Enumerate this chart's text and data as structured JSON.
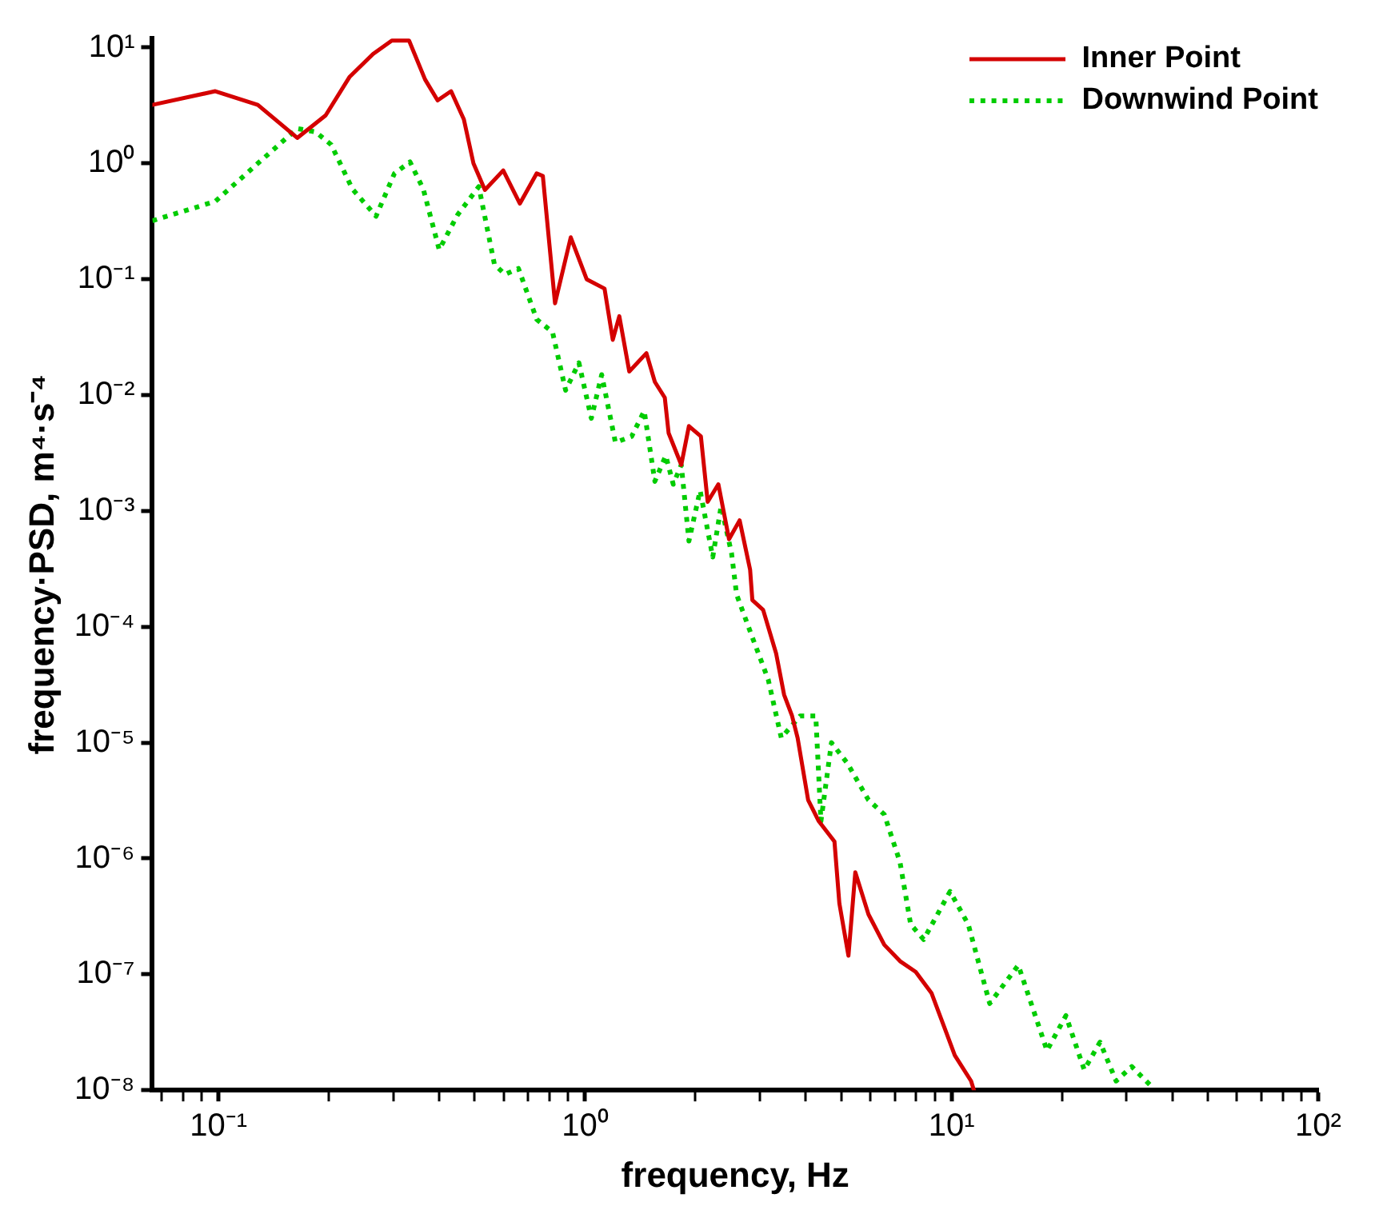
{
  "chart_data": {
    "type": "line",
    "xlabel": "frequency, Hz",
    "ylabel": "frequency·PSD, m⁴·s⁻⁴",
    "log": "xy",
    "grid": false,
    "legend": "top right",
    "marker": "none",
    "xlim": [
      0.066,
      100
    ],
    "ylim": [
      1e-08,
      12
    ],
    "xticks": [
      {
        "value": 0.07,
        "label": null
      },
      {
        "value": 0.08,
        "label": null
      },
      {
        "value": 0.09,
        "label": null
      },
      {
        "value": 0.1,
        "label": "10⁻¹"
      },
      {
        "value": 0.2,
        "label": null
      },
      {
        "value": 0.3,
        "label": null
      },
      {
        "value": 0.4,
        "label": null
      },
      {
        "value": 0.5,
        "label": null
      },
      {
        "value": 0.6,
        "label": null
      },
      {
        "value": 0.7,
        "label": null
      },
      {
        "value": 0.8,
        "label": null
      },
      {
        "value": 0.9,
        "label": null
      },
      {
        "value": 1,
        "label": "10⁰"
      },
      {
        "value": 2,
        "label": null
      },
      {
        "value": 3,
        "label": null
      },
      {
        "value": 4,
        "label": null
      },
      {
        "value": 5,
        "label": null
      },
      {
        "value": 6,
        "label": null
      },
      {
        "value": 7,
        "label": null
      },
      {
        "value": 8,
        "label": null
      },
      {
        "value": 9,
        "label": null
      },
      {
        "value": 10,
        "label": "10¹"
      },
      {
        "value": 20,
        "label": null
      },
      {
        "value": 30,
        "label": null
      },
      {
        "value": 40,
        "label": null
      },
      {
        "value": 50,
        "label": null
      },
      {
        "value": 60,
        "label": null
      },
      {
        "value": 70,
        "label": null
      },
      {
        "value": 80,
        "label": null
      },
      {
        "value": 90,
        "label": null
      },
      {
        "value": 100,
        "label": "10²"
      }
    ],
    "yticks": [
      {
        "value": 1e-08,
        "label": "10⁻⁸"
      },
      {
        "value": 1e-07,
        "label": "10⁻⁷"
      },
      {
        "value": 1e-06,
        "label": "10⁻⁶"
      },
      {
        "value": 1e-05,
        "label": "10⁻⁵"
      },
      {
        "value": 0.0001,
        "label": "10⁻⁴"
      },
      {
        "value": 0.001,
        "label": "10⁻³"
      },
      {
        "value": 0.01,
        "label": "10⁻²"
      },
      {
        "value": 0.1,
        "label": "10⁻¹"
      },
      {
        "value": 1,
        "label": "10⁰"
      },
      {
        "value": 10,
        "label": "10¹"
      }
    ],
    "series": [
      {
        "name": "Inner Point",
        "color": "#d40000",
        "line_style": "solid",
        "x": [
          0.066,
          0.098,
          0.128,
          0.164,
          0.196,
          0.228,
          0.264,
          0.297,
          0.331,
          0.366,
          0.396,
          0.431,
          0.467,
          0.496,
          0.533,
          0.598,
          0.664,
          0.738,
          0.767,
          0.828,
          0.914,
          1.01,
          1.13,
          1.19,
          1.24,
          1.32,
          1.47,
          1.55,
          1.65,
          1.69,
          1.83,
          1.92,
          2.07,
          2.16,
          2.31,
          2.47,
          2.64,
          2.82,
          2.86,
          3.06,
          3.32,
          3.49,
          3.67,
          3.8,
          4.06,
          4.34,
          4.79,
          4.94,
          5.23,
          5.46,
          5.93,
          6.55,
          7.23,
          7.98,
          8.81,
          9.58,
          10.2,
          11.3,
          11.5
        ],
        "values": [
          3.2,
          4.2,
          3.2,
          1.66,
          2.6,
          5.6,
          8.8,
          11.5,
          11.5,
          5.3,
          3.5,
          4.2,
          2.4,
          1.0,
          0.59,
          0.87,
          0.45,
          0.82,
          0.78,
          0.062,
          0.23,
          0.1,
          0.083,
          0.03,
          0.048,
          0.016,
          0.023,
          0.013,
          0.0095,
          0.0047,
          0.0025,
          0.0054,
          0.0044,
          0.0012,
          0.0017,
          0.00057,
          0.00083,
          0.00031,
          0.00017,
          0.00014,
          5.9e-05,
          2.6e-05,
          1.7e-05,
          1.1e-05,
          3.2e-06,
          2.1e-06,
          1.4e-06,
          4.1e-07,
          1.45e-07,
          7.6e-07,
          3.3e-07,
          1.8e-07,
          1.3e-07,
          1.05e-07,
          6.9e-08,
          3.4e-08,
          2e-08,
          1.2e-08,
          1e-08
        ]
      },
      {
        "name": "Downwind Point",
        "color": "#00cc00",
        "line_style": "dotted",
        "x": [
          0.066,
          0.098,
          0.128,
          0.164,
          0.184,
          0.203,
          0.232,
          0.269,
          0.302,
          0.333,
          0.362,
          0.4,
          0.449,
          0.513,
          0.566,
          0.605,
          0.658,
          0.738,
          0.815,
          0.885,
          0.962,
          1.04,
          1.11,
          1.21,
          1.34,
          1.45,
          1.55,
          1.66,
          1.74,
          1.83,
          1.92,
          2.06,
          2.23,
          2.35,
          2.51,
          2.59,
          2.86,
          3.16,
          3.43,
          3.86,
          4.26,
          4.4,
          4.7,
          5.2,
          5.93,
          6.55,
          7.23,
          7.73,
          8.39,
          9.9,
          11.1,
          12.7,
          15.2,
          18.2,
          20.5,
          23,
          25.4,
          28.1,
          31,
          35.4
        ],
        "values": [
          0.32,
          0.47,
          1.0,
          2.0,
          1.87,
          1.45,
          0.6,
          0.35,
          0.82,
          1.03,
          0.6,
          0.18,
          0.36,
          0.63,
          0.134,
          0.11,
          0.124,
          0.045,
          0.035,
          0.011,
          0.019,
          0.0063,
          0.015,
          0.0039,
          0.0044,
          0.0073,
          0.0018,
          0.003,
          0.0017,
          0.0025,
          0.00055,
          0.0015,
          0.0004,
          0.0011,
          0.00043,
          0.00019,
          8.1e-05,
          3.5e-05,
          1.1e-05,
          1.7e-05,
          1.7e-05,
          2.1e-06,
          1e-05,
          6.6e-06,
          3.2e-06,
          2.4e-06,
          9.3e-07,
          2.7e-07,
          2e-07,
          5.2e-07,
          2.7e-07,
          5.6e-08,
          1.2e-07,
          2.2e-08,
          4.4e-08,
          1.5e-08,
          2.6e-08,
          1.2e-08,
          1.6e-08,
          1.05e-08
        ]
      }
    ]
  }
}
